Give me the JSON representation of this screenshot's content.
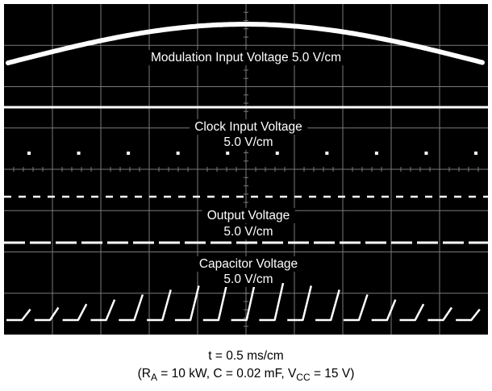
{
  "chart_data": {
    "type": "line",
    "title": "",
    "colors": {
      "background": "#000000",
      "grid": "#7a7a7a",
      "trace": "#ffffff"
    },
    "grid": {
      "divisions_x": 10,
      "divisions_y": 8
    },
    "traces": [
      {
        "label": "Modulation Input Voltage 5.0 V/cm",
        "shape": "sinusoid-half-period"
      },
      {
        "label_line1": "Clock Input Voltage",
        "label_line2": "5.0 V/cm",
        "shape": "pulse-dots",
        "pulse_count": 10
      },
      {
        "label_line1": "Output Voltage",
        "label_line2": "5.0 V/cm",
        "shape": "pulse-train"
      },
      {
        "label_line1": "Capacitor Voltage",
        "label_line2": "5.0 V/cm",
        "shape": "sawtooth",
        "ramp_count": 17
      }
    ]
  },
  "caption": {
    "line1": "t = 0.5  ms/cm",
    "line2": {
      "open": "(R",
      "ra_sub": "A",
      "middle": " = 10 kW, C = 0.02 mF, V",
      "vcc_sub": "CC",
      "close": " = 15 V)"
    }
  }
}
